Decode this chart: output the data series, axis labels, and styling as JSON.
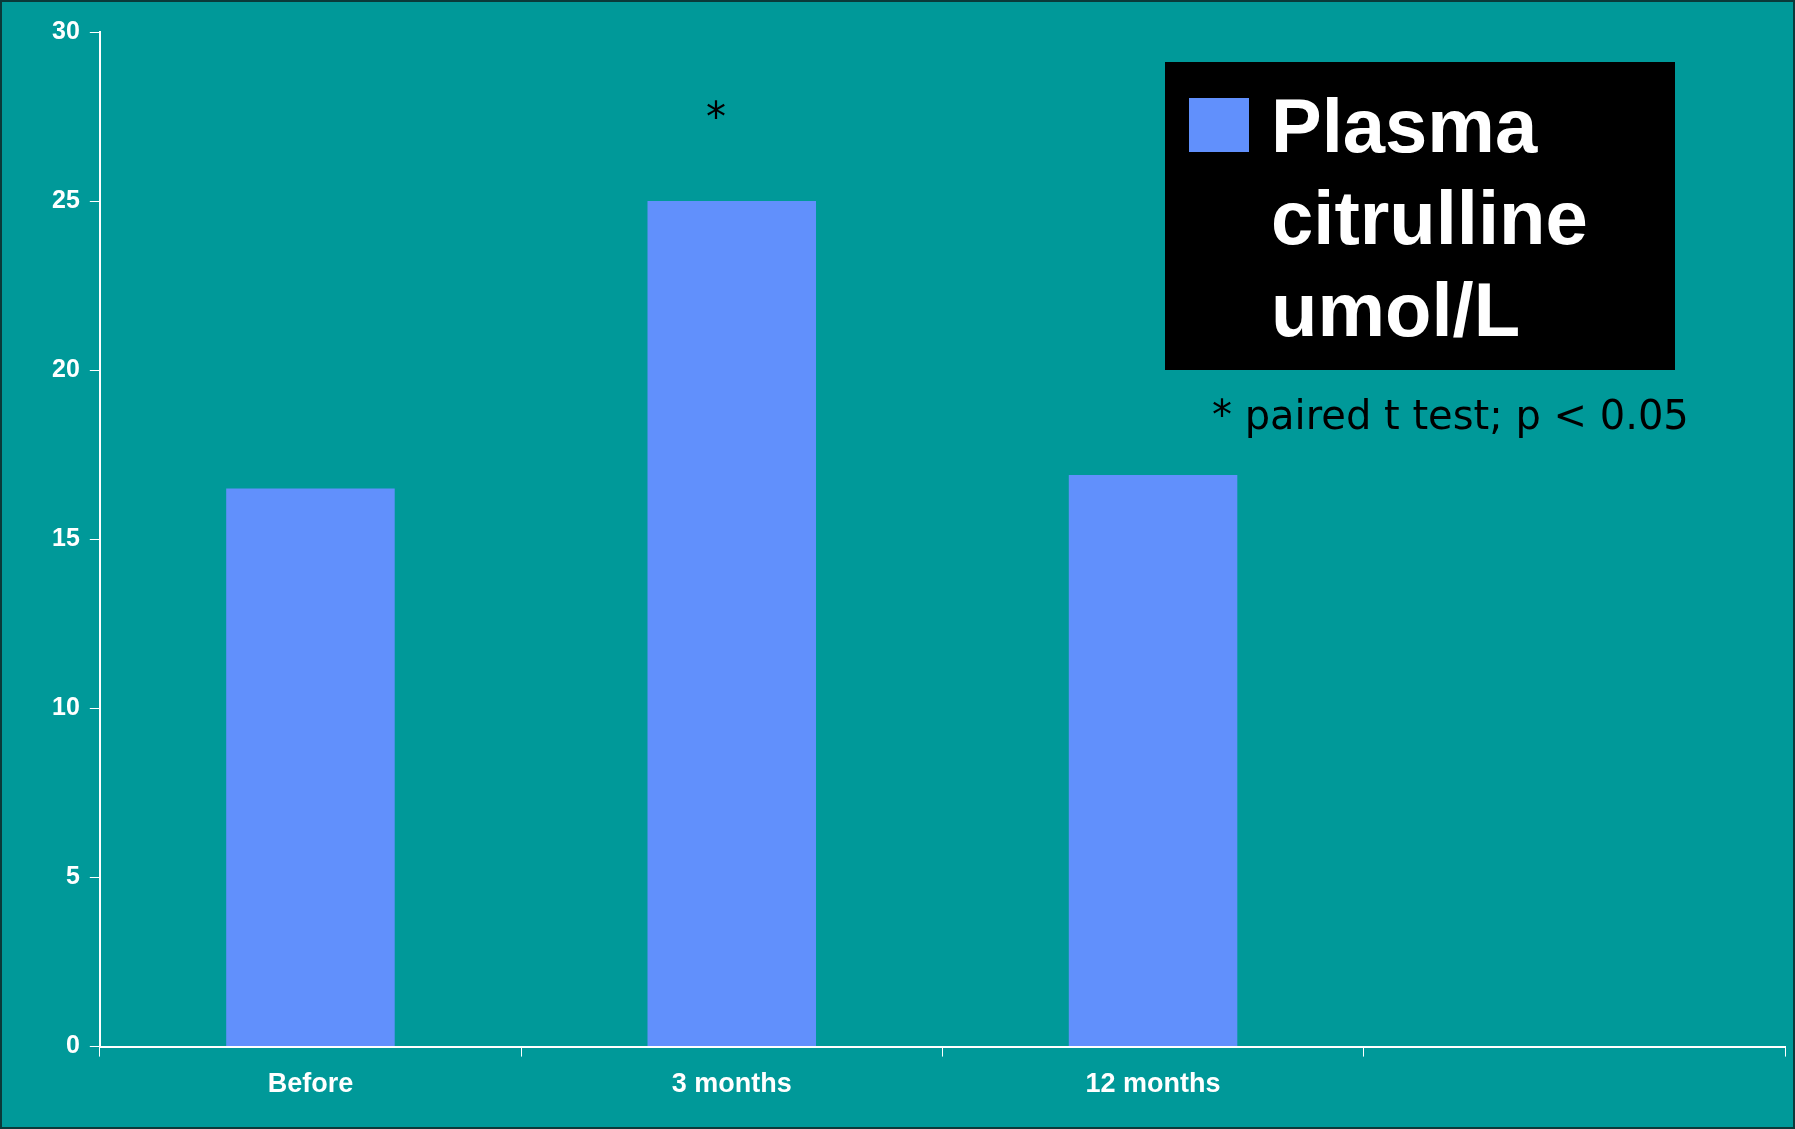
{
  "chart_data": {
    "type": "bar",
    "categories": [
      "Before",
      "3 months",
      "12 months",
      null
    ],
    "series": [
      {
        "name": "Plasma citrulline umol/L",
        "color": "#6190fc",
        "values": [
          16.5,
          25,
          16.9,
          null
        ]
      }
    ],
    "ylim": [
      0,
      30
    ],
    "yticks": [
      0,
      5,
      10,
      15,
      20,
      25,
      30
    ],
    "grid": false,
    "legend": "top right",
    "annotations": [
      "*",
      "* paired t test; p < 0.05"
    ]
  }
}
